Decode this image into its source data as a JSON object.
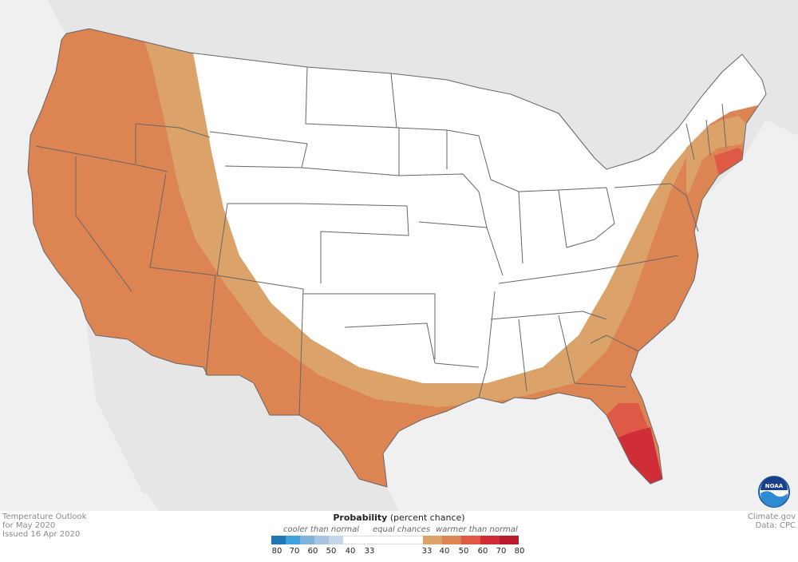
{
  "footer": {
    "outlook_title": "Temperature Outlook",
    "period": "for May 2020",
    "issued": "Issued 16 Apr 2020",
    "source_site": "Climate.gov",
    "source_data": "Data: CPC"
  },
  "legend": {
    "title_bold": "Probability",
    "title_rest": " (percent chance)",
    "cool_caption": "cooler than normal",
    "equal_caption": "equal chances",
    "warm_caption": "warmer than normal",
    "ticks": [
      "80",
      "70",
      "60",
      "50",
      "40",
      "33",
      "33",
      "40",
      "50",
      "60",
      "70",
      "80"
    ]
  },
  "logo": {
    "text": "NOAA"
  },
  "colors": {
    "background": "#f0f0f0",
    "land_other": "#e6e6e6",
    "equal_chances": "#ffffff",
    "warm_33_40": "#dba36a",
    "warm_40_50": "#dd8453",
    "warm_50_60": "#de5a46",
    "warm_60_70": "#cf2e39",
    "warm_70_80": "#b81c2b",
    "cool_33_40": "#c6d6ea",
    "cool_40_50": "#a6c4e0",
    "cool_50_60": "#7fb3dc",
    "cool_60_70": "#3fa0da",
    "cool_70_80": "#1f77b4",
    "state_border": "#666666"
  },
  "icons": [
    "noaa-logo-icon"
  ]
}
